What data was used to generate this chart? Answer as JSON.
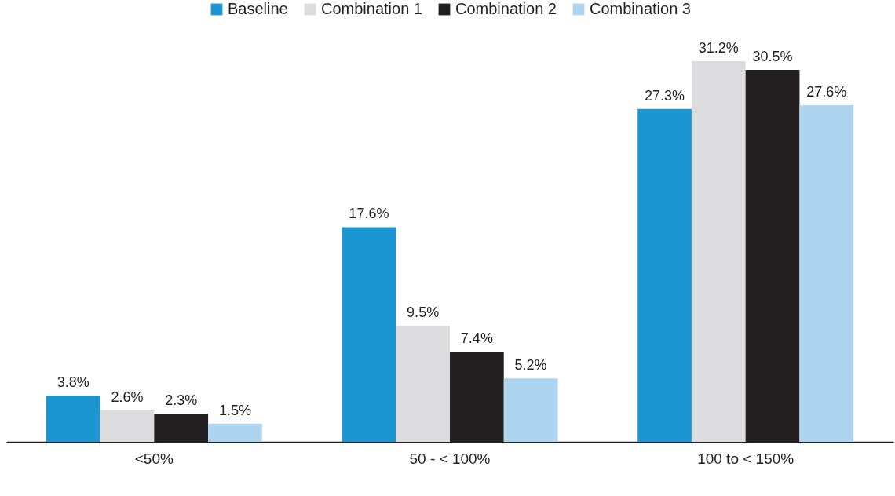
{
  "chart_data": {
    "type": "bar",
    "categories": [
      "<50%",
      "50 - < 100%",
      "100 to < 150%"
    ],
    "series": [
      {
        "name": "Baseline",
        "color": "#1b96d3",
        "values": [
          3.8,
          17.6,
          27.3
        ],
        "value_labels": [
          "3.8%",
          "17.6%",
          "27.3%"
        ]
      },
      {
        "name": "Combination 1",
        "color": "#dcdcde",
        "values": [
          2.6,
          9.5,
          31.2
        ],
        "value_labels": [
          "2.6%",
          "9.5%",
          "31.2%"
        ]
      },
      {
        "name": "Combination 2",
        "color": "#231f20",
        "values": [
          2.3,
          7.4,
          30.5
        ],
        "value_labels": [
          "2.3%",
          "7.4%",
          "30.5%"
        ]
      },
      {
        "name": "Combination 3",
        "color": "#aed5f0",
        "values": [
          1.5,
          5.2,
          27.6
        ],
        "value_labels": [
          "1.5%",
          "5.2%",
          "27.6%"
        ]
      }
    ],
    "legend": "top",
    "tick_labels": "x"
  }
}
